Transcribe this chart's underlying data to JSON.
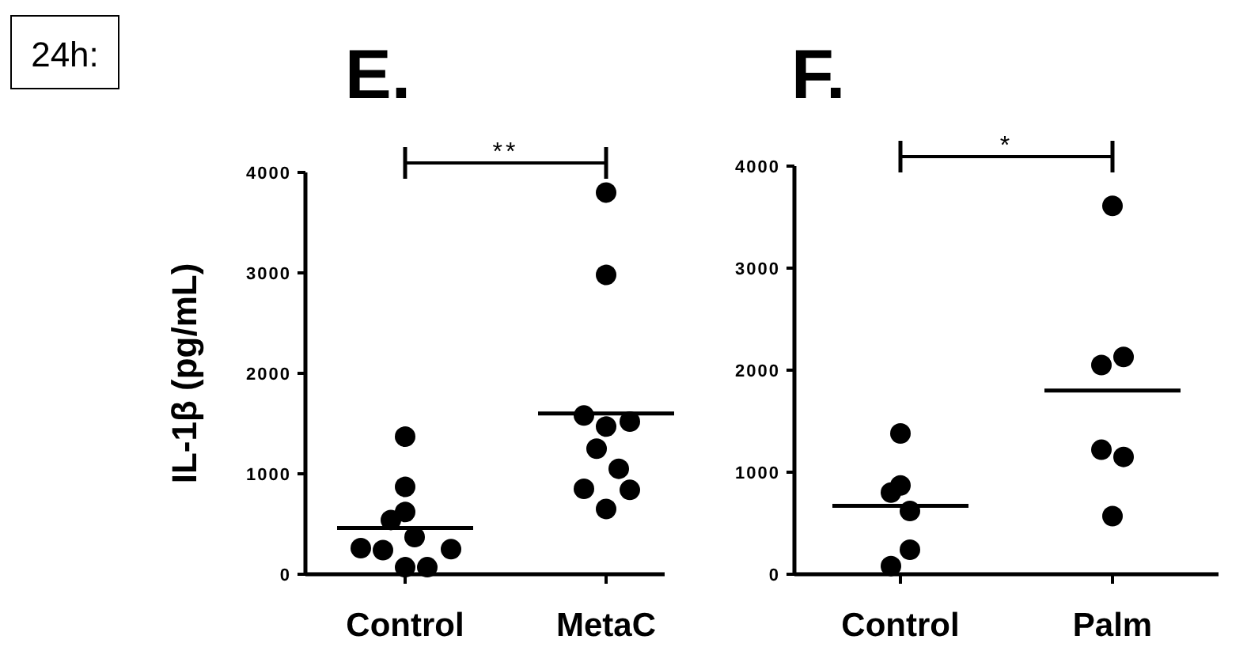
{
  "chart_data": [
    {
      "type": "scatter",
      "title": "E.",
      "ylabel": "IL-1β (pg/mL)",
      "categories": [
        "Control",
        "MetaC"
      ],
      "ylim": [
        0,
        4000
      ],
      "yticks": [
        0,
        1000,
        2000,
        3000,
        4000
      ],
      "marker": "circle",
      "grid": false,
      "series": [
        {
          "color": "#000000",
          "x": [
            "Control",
            "Control",
            "Control",
            "Control",
            "Control",
            "Control",
            "Control",
            "Control",
            "Control",
            "Control"
          ],
          "values": [
            1370,
            870,
            620,
            540,
            370,
            260,
            240,
            250,
            70,
            70
          ]
        },
        {
          "color": "#000000",
          "x": [
            "MetaC",
            "MetaC",
            "MetaC",
            "MetaC",
            "MetaC",
            "MetaC",
            "MetaC",
            "MetaC",
            "MetaC",
            "MetaC"
          ],
          "values": [
            3800,
            2980,
            1580,
            1470,
            1520,
            1250,
            1050,
            850,
            840,
            650
          ]
        },
        {
          "type": "box",
          "color": "#000000",
          "boxes": [
            {
              "low": 460,
              "q1": 460,
              "median": 460,
              "q3": 460,
              "high": 460
            },
            {
              "low": 1600,
              "q1": 1600,
              "median": 1600,
              "q3": 1600,
              "high": 1600
            }
          ]
        }
      ],
      "annotations": [
        "24h:",
        "**"
      ]
    },
    {
      "type": "scatter",
      "title": "F.",
      "categories": [
        "Control",
        "Palm"
      ],
      "ylim": [
        0,
        4000
      ],
      "yticks": [
        0,
        1000,
        2000,
        3000,
        4000
      ],
      "marker": "circle",
      "grid": false,
      "series": [
        {
          "color": "#000000",
          "x": [
            "Control",
            "Control",
            "Control",
            "Control",
            "Control",
            "Control"
          ],
          "values": [
            1380,
            870,
            800,
            620,
            240,
            80
          ]
        },
        {
          "color": "#000000",
          "x": [
            "Palm",
            "Palm",
            "Palm",
            "Palm",
            "Palm",
            "Palm"
          ],
          "values": [
            3610,
            2130,
            2050,
            1220,
            1150,
            570
          ]
        },
        {
          "type": "box",
          "color": "#000000",
          "boxes": [
            {
              "low": 670,
              "q1": 670,
              "median": 670,
              "q3": 670,
              "high": 670
            },
            {
              "low": 1800,
              "q1": 1800,
              "median": 1800,
              "q3": 1800,
              "high": 1800
            }
          ]
        }
      ],
      "annotations": [
        "*"
      ]
    }
  ]
}
